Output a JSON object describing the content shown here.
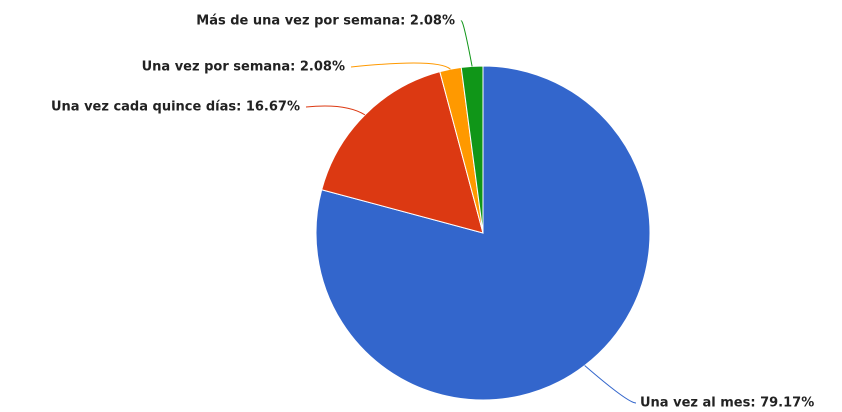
{
  "chart_data": {
    "type": "pie",
    "values": [
      79.17,
      16.67,
      2.08,
      2.08
    ],
    "value_labels": [
      "Una vez al mes: 79.17%",
      "Una vez cada quince días: 16.67%",
      "Una vez por semana: 2.08%",
      "Más de una vez por semana: 2.08%"
    ],
    "colors": [
      "#3366cc",
      "#dc3912",
      "#ff9900",
      "#109618"
    ]
  }
}
